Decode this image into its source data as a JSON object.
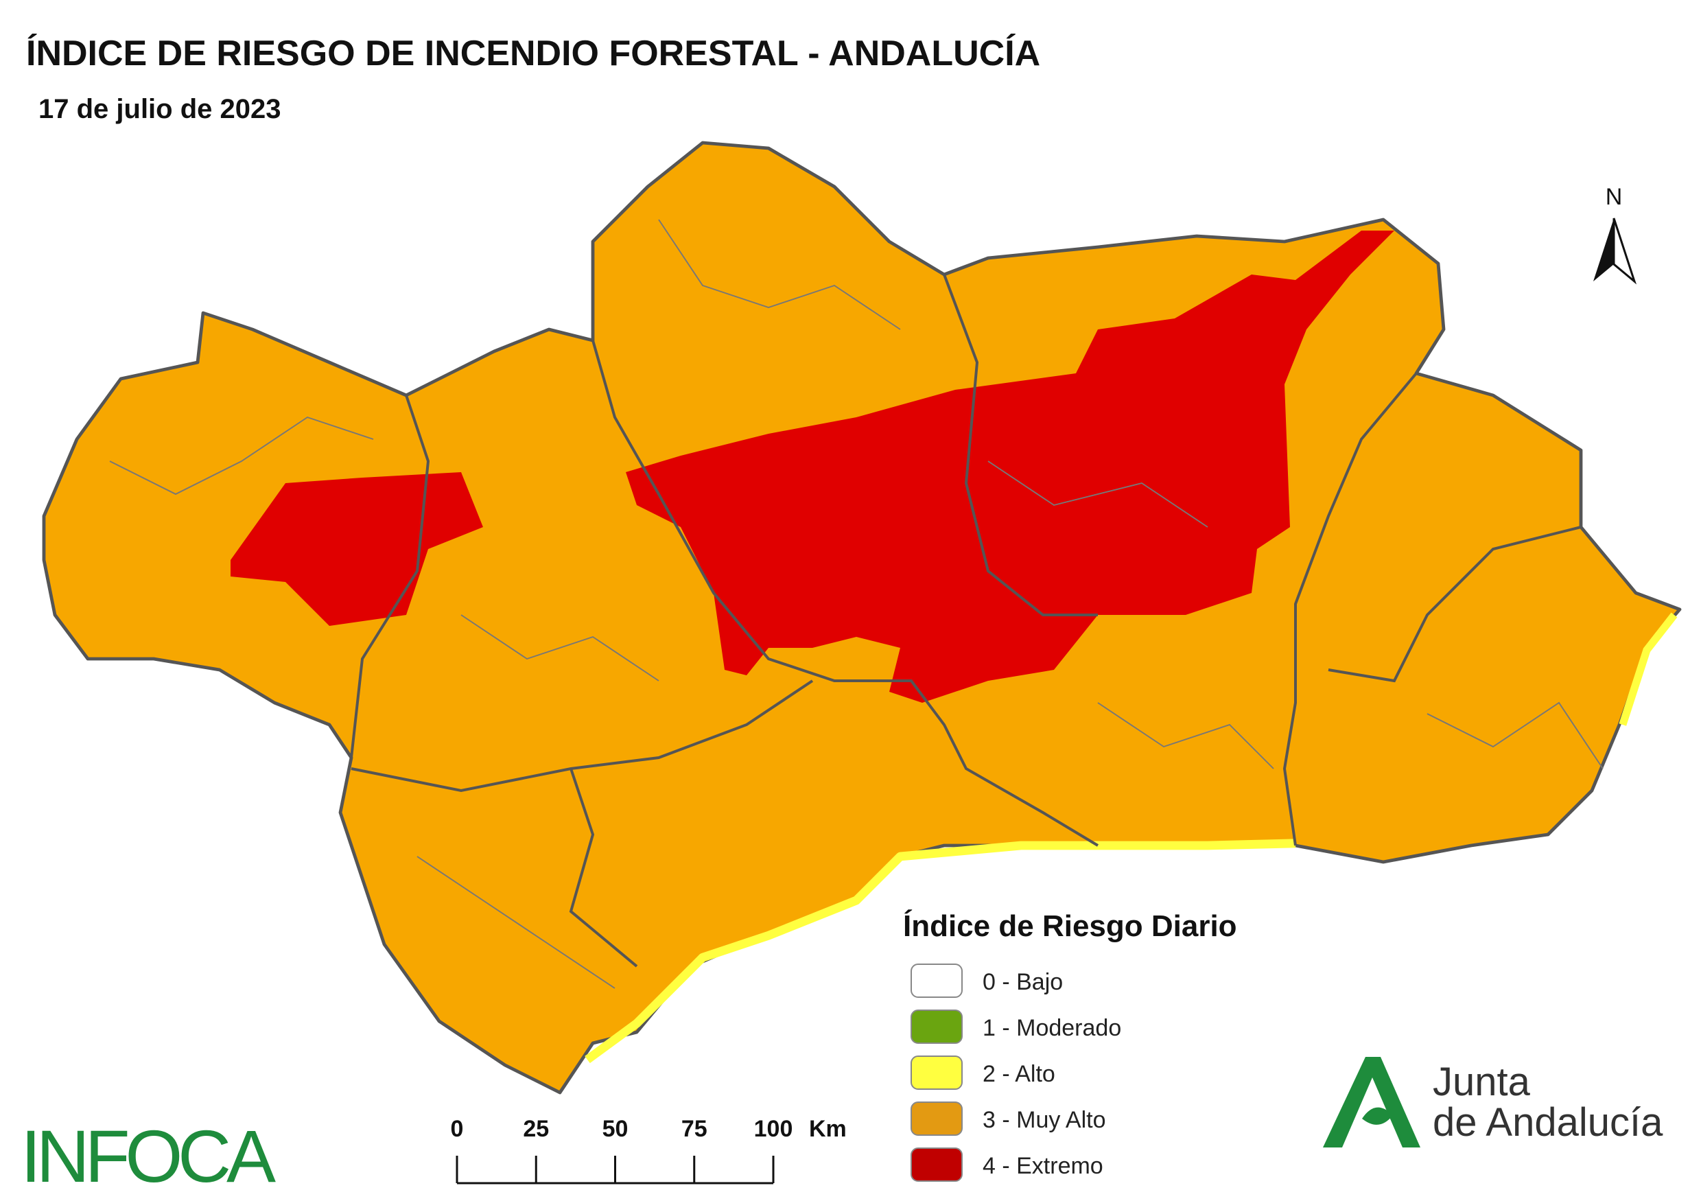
{
  "header": {
    "title": "ÍNDICE DE RIESGO DE INCENDIO FORESTAL - ANDALUCÍA",
    "date": "17 de julio de 2023"
  },
  "legend": {
    "title": "Índice de Riesgo Diario",
    "items": [
      {
        "label": "0 - Bajo",
        "color": "#ffffff"
      },
      {
        "label": "1 - Moderado",
        "color": "#6aa510"
      },
      {
        "label": "2 - Alto",
        "color": "#ffff40"
      },
      {
        "label": "3 - Muy Alto",
        "color": "#e39a12"
      },
      {
        "label": "4 - Extremo",
        "color": "#c00000"
      }
    ]
  },
  "scale_bar": {
    "ticks": [
      0,
      25,
      50,
      75,
      100
    ],
    "unit": "Km"
  },
  "north": "N",
  "logos": {
    "infoca": "INFOCA",
    "junta": [
      "Junta",
      "de Andalucía"
    ]
  }
}
